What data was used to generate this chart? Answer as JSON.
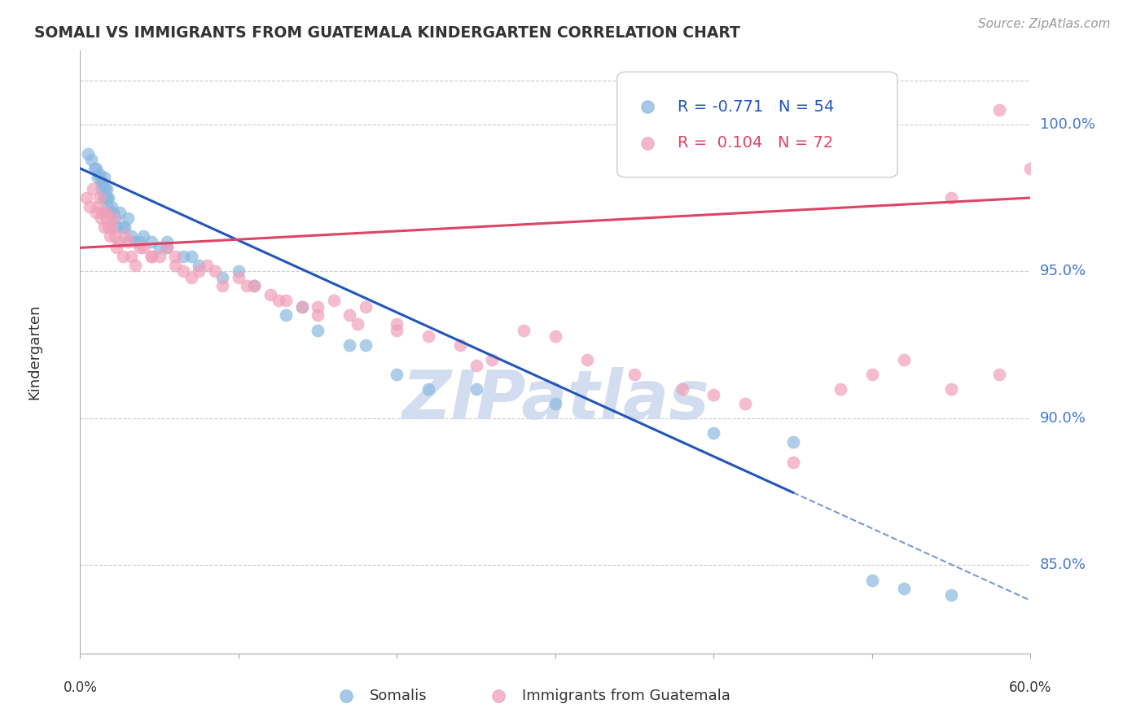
{
  "title": "SOMALI VS IMMIGRANTS FROM GUATEMALA KINDERGARTEN CORRELATION CHART",
  "source": "Source: ZipAtlas.com",
  "ylabel": "Kindergarten",
  "xlim": [
    0.0,
    60.0
  ],
  "ylim": [
    82.0,
    102.5
  ],
  "right_yticks": [
    85.0,
    90.0,
    95.0,
    100.0
  ],
  "top_gridline_y": 101.5,
  "legend_blue_r": "R = -0.771",
  "legend_blue_n": "N = 54",
  "legend_pink_r": "R =  0.104",
  "legend_pink_n": "N = 72",
  "blue_scatter_color": "#8ab8e0",
  "pink_scatter_color": "#f0a0b8",
  "blue_line_color": "#2255bb",
  "pink_line_color": "#dd4466",
  "watermark": "ZIPatlas",
  "watermark_color": "#ccd8ee",
  "grid_color": "#cccccc",
  "bg_color": "#ffffff",
  "title_color": "#333333",
  "right_axis_color": "#4477cc",
  "blue_scatter_x": [
    0.5,
    0.7,
    0.9,
    1.0,
    1.1,
    1.2,
    1.3,
    1.35,
    1.4,
    1.45,
    1.5,
    1.55,
    1.6,
    1.65,
    1.7,
    1.75,
    1.8,
    1.9,
    2.0,
    2.1,
    2.2,
    2.3,
    2.5,
    2.7,
    3.0,
    3.5,
    4.0,
    4.5,
    5.0,
    5.5,
    6.5,
    7.5,
    9.0,
    11.0,
    14.0,
    17.0,
    20.0,
    25.0,
    30.0,
    40.0,
    45.0,
    50.0,
    52.0,
    55.0,
    2.8,
    3.2,
    3.8,
    5.5,
    7.0,
    10.0,
    13.0,
    15.0,
    18.0,
    22.0
  ],
  "blue_scatter_y": [
    99.0,
    98.8,
    98.5,
    98.5,
    98.2,
    98.3,
    98.0,
    97.8,
    98.0,
    97.5,
    98.2,
    97.8,
    97.5,
    97.8,
    97.5,
    97.2,
    97.5,
    97.0,
    97.2,
    97.0,
    96.8,
    96.5,
    97.0,
    96.5,
    96.8,
    96.0,
    96.2,
    96.0,
    95.8,
    96.0,
    95.5,
    95.2,
    94.8,
    94.5,
    93.8,
    92.5,
    91.5,
    91.0,
    90.5,
    89.5,
    89.2,
    84.5,
    84.2,
    84.0,
    96.5,
    96.2,
    96.0,
    95.8,
    95.5,
    95.0,
    93.5,
    93.0,
    92.5,
    91.0
  ],
  "pink_scatter_x": [
    0.4,
    0.6,
    0.8,
    1.0,
    1.1,
    1.2,
    1.3,
    1.4,
    1.5,
    1.6,
    1.7,
    1.8,
    1.9,
    2.0,
    2.1,
    2.2,
    2.3,
    2.5,
    2.7,
    3.0,
    3.2,
    3.5,
    4.0,
    4.5,
    5.0,
    5.5,
    6.0,
    6.5,
    7.0,
    7.5,
    8.0,
    9.0,
    10.0,
    11.0,
    12.0,
    13.0,
    14.0,
    15.0,
    16.0,
    17.0,
    18.0,
    20.0,
    22.0,
    24.0,
    26.0,
    28.0,
    30.0,
    32.0,
    35.0,
    38.0,
    40.0,
    42.0,
    45.0,
    48.0,
    50.0,
    52.0,
    55.0,
    58.0,
    2.8,
    3.8,
    4.5,
    6.0,
    8.5,
    10.5,
    12.5,
    15.0,
    17.5,
    20.0,
    25.0,
    55.0,
    58.0,
    60.0
  ],
  "pink_scatter_y": [
    97.5,
    97.2,
    97.8,
    97.0,
    97.2,
    97.5,
    96.8,
    97.0,
    96.5,
    97.0,
    96.8,
    96.5,
    96.2,
    96.5,
    96.8,
    96.2,
    95.8,
    96.0,
    95.5,
    96.0,
    95.5,
    95.2,
    95.8,
    95.5,
    95.5,
    95.8,
    95.2,
    95.0,
    94.8,
    95.0,
    95.2,
    94.5,
    94.8,
    94.5,
    94.2,
    94.0,
    93.8,
    93.5,
    94.0,
    93.5,
    93.8,
    93.2,
    92.8,
    92.5,
    92.0,
    93.0,
    92.8,
    92.0,
    91.5,
    91.0,
    90.8,
    90.5,
    88.5,
    91.0,
    91.5,
    92.0,
    91.0,
    91.5,
    96.2,
    95.8,
    95.5,
    95.5,
    95.0,
    94.5,
    94.0,
    93.8,
    93.2,
    93.0,
    91.8,
    97.5,
    100.5,
    98.5
  ],
  "blue_line_x0": 0.0,
  "blue_line_y0": 98.5,
  "blue_line_x1": 60.0,
  "blue_line_y1": 83.8,
  "blue_solid_end_x": 45.0,
  "pink_line_x0": 0.0,
  "pink_line_y0": 95.8,
  "pink_line_x1": 60.0,
  "pink_line_y1": 97.5
}
